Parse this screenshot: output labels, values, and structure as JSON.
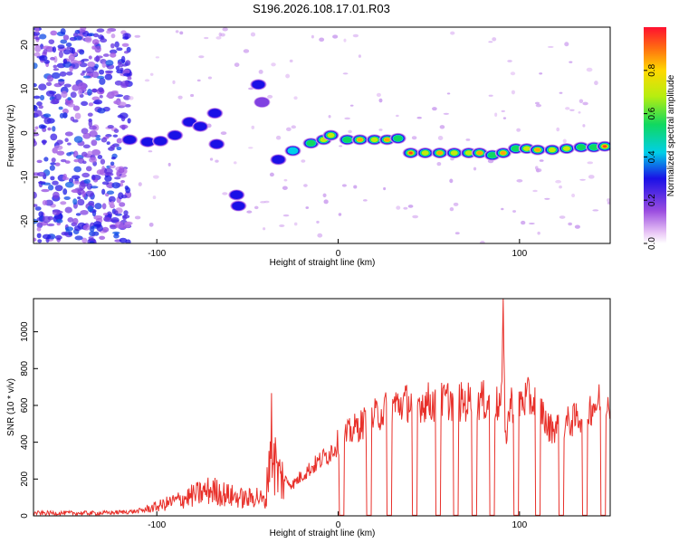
{
  "title": "S196.2026.108.17.01.R03",
  "chart_data": [
    {
      "type": "heatmap",
      "xlabel": "Height of straight line (km)",
      "ylabel": "Frequency (Hz)",
      "xlim": [
        -168,
        150
      ],
      "ylim": [
        -25,
        24
      ],
      "xticks": [
        -100,
        0,
        100
      ],
      "yticks": [
        -20,
        -10,
        0,
        10,
        20
      ],
      "ridge": [
        {
          "x": -115,
          "y": -1.5,
          "amp": 0.3
        },
        {
          "x": -105,
          "y": -2,
          "amp": 0.35
        },
        {
          "x": -98,
          "y": -1.8,
          "amp": 0.4
        },
        {
          "x": -90,
          "y": -0.5,
          "amp": 0.35
        },
        {
          "x": -82,
          "y": 2.5,
          "amp": 0.4
        },
        {
          "x": -76,
          "y": 1.5,
          "amp": 0.3
        },
        {
          "x": -68,
          "y": 4.5,
          "amp": 0.4
        },
        {
          "x": -67,
          "y": -2.5,
          "amp": 0.3
        },
        {
          "x": -56,
          "y": -14,
          "amp": 0.3
        },
        {
          "x": -55,
          "y": -16.5,
          "amp": 0.4
        },
        {
          "x": -44,
          "y": 11,
          "amp": 0.3
        },
        {
          "x": -42,
          "y": 7,
          "amp": 0.25
        },
        {
          "x": -33,
          "y": -6,
          "amp": 0.3
        },
        {
          "x": -25,
          "y": -4,
          "amp": 0.45
        },
        {
          "x": -15,
          "y": -2.3,
          "amp": 0.6
        },
        {
          "x": -8,
          "y": -1.5,
          "amp": 0.7
        },
        {
          "x": -4,
          "y": -0.5,
          "amp": 0.8
        },
        {
          "x": 5,
          "y": -1.5,
          "amp": 0.6
        },
        {
          "x": 12,
          "y": -1.5,
          "amp": 0.85
        },
        {
          "x": 20,
          "y": -1.5,
          "amp": 0.8
        },
        {
          "x": 27,
          "y": -1.5,
          "amp": 0.9
        },
        {
          "x": 33,
          "y": -1.2,
          "amp": 0.6
        },
        {
          "x": 40,
          "y": -4.5,
          "amp": 0.95
        },
        {
          "x": 48,
          "y": -4.5,
          "amp": 0.8
        },
        {
          "x": 56,
          "y": -4.5,
          "amp": 0.85
        },
        {
          "x": 64,
          "y": -4.5,
          "amp": 0.8
        },
        {
          "x": 72,
          "y": -4.5,
          "amp": 0.7
        },
        {
          "x": 78,
          "y": -4.5,
          "amp": 0.9
        },
        {
          "x": 85,
          "y": -5,
          "amp": 0.6
        },
        {
          "x": 91,
          "y": -4.5,
          "amp": 0.85
        },
        {
          "x": 98,
          "y": -3.5,
          "amp": 0.6
        },
        {
          "x": 104,
          "y": -3.5,
          "amp": 0.7
        },
        {
          "x": 110,
          "y": -3.8,
          "amp": 0.9
        },
        {
          "x": 118,
          "y": -3.8,
          "amp": 0.75
        },
        {
          "x": 126,
          "y": -3.5,
          "amp": 0.7
        },
        {
          "x": 134,
          "y": -3.2,
          "amp": 0.65
        },
        {
          "x": 141,
          "y": -3.2,
          "amp": 0.6
        },
        {
          "x": 147,
          "y": -3,
          "amp": 0.95
        }
      ],
      "noise_region": {
        "x": [
          -168,
          -115
        ],
        "y": [
          -25,
          24
        ],
        "amp": [
          0.1,
          0.35
        ]
      },
      "colorbar": {
        "label": "Normalized spectral amplitude",
        "range": [
          0.0,
          1.0
        ],
        "ticks": [
          0.0,
          0.2,
          0.4,
          0.6,
          0.8
        ],
        "tick_labels": [
          "0.0",
          "0.2",
          "0.4",
          "0.6",
          "0.8"
        ],
        "colormap": "rainbow"
      }
    },
    {
      "type": "line",
      "xlabel": "Height of straight line (km)",
      "ylabel": "SNR (10 * v/v)",
      "xlim": [
        -168,
        150
      ],
      "ylim": [
        0,
        1180
      ],
      "xticks": [
        -100,
        0,
        100
      ],
      "yticks": [
        0,
        200,
        400,
        600,
        800,
        1000
      ],
      "color": "#e02020",
      "series": [
        {
          "name": "SNR",
          "x": [
            -168,
            -150,
            -130,
            -110,
            -100,
            -90,
            -80,
            -70,
            -60,
            -50,
            -45,
            -40,
            -37,
            -35,
            -33,
            -30,
            -25,
            -20,
            -15,
            -10,
            -5,
            0,
            5,
            10,
            15,
            20,
            25,
            30,
            35,
            40,
            45,
            50,
            55,
            60,
            65,
            70,
            75,
            80,
            85,
            90,
            91,
            92,
            95,
            100,
            105,
            110,
            113,
            115,
            120,
            125,
            130,
            135,
            140,
            145,
            150
          ],
          "y": [
            15,
            15,
            15,
            25,
            50,
            80,
            110,
            140,
            110,
            90,
            110,
            70,
            450,
            300,
            220,
            200,
            170,
            220,
            260,
            300,
            340,
            400,
            440,
            480,
            510,
            540,
            570,
            600,
            610,
            620,
            615,
            620,
            610,
            630,
            620,
            615,
            630,
            625,
            610,
            600,
            1180,
            400,
            610,
            620,
            640,
            600,
            560,
            480,
            480,
            500,
            520,
            550,
            600,
            620,
            640
          ]
        }
      ],
      "dropouts_x": [
        2,
        17,
        28,
        42,
        55,
        65,
        75,
        85,
        98,
        110,
        123,
        136,
        146
      ]
    }
  ]
}
